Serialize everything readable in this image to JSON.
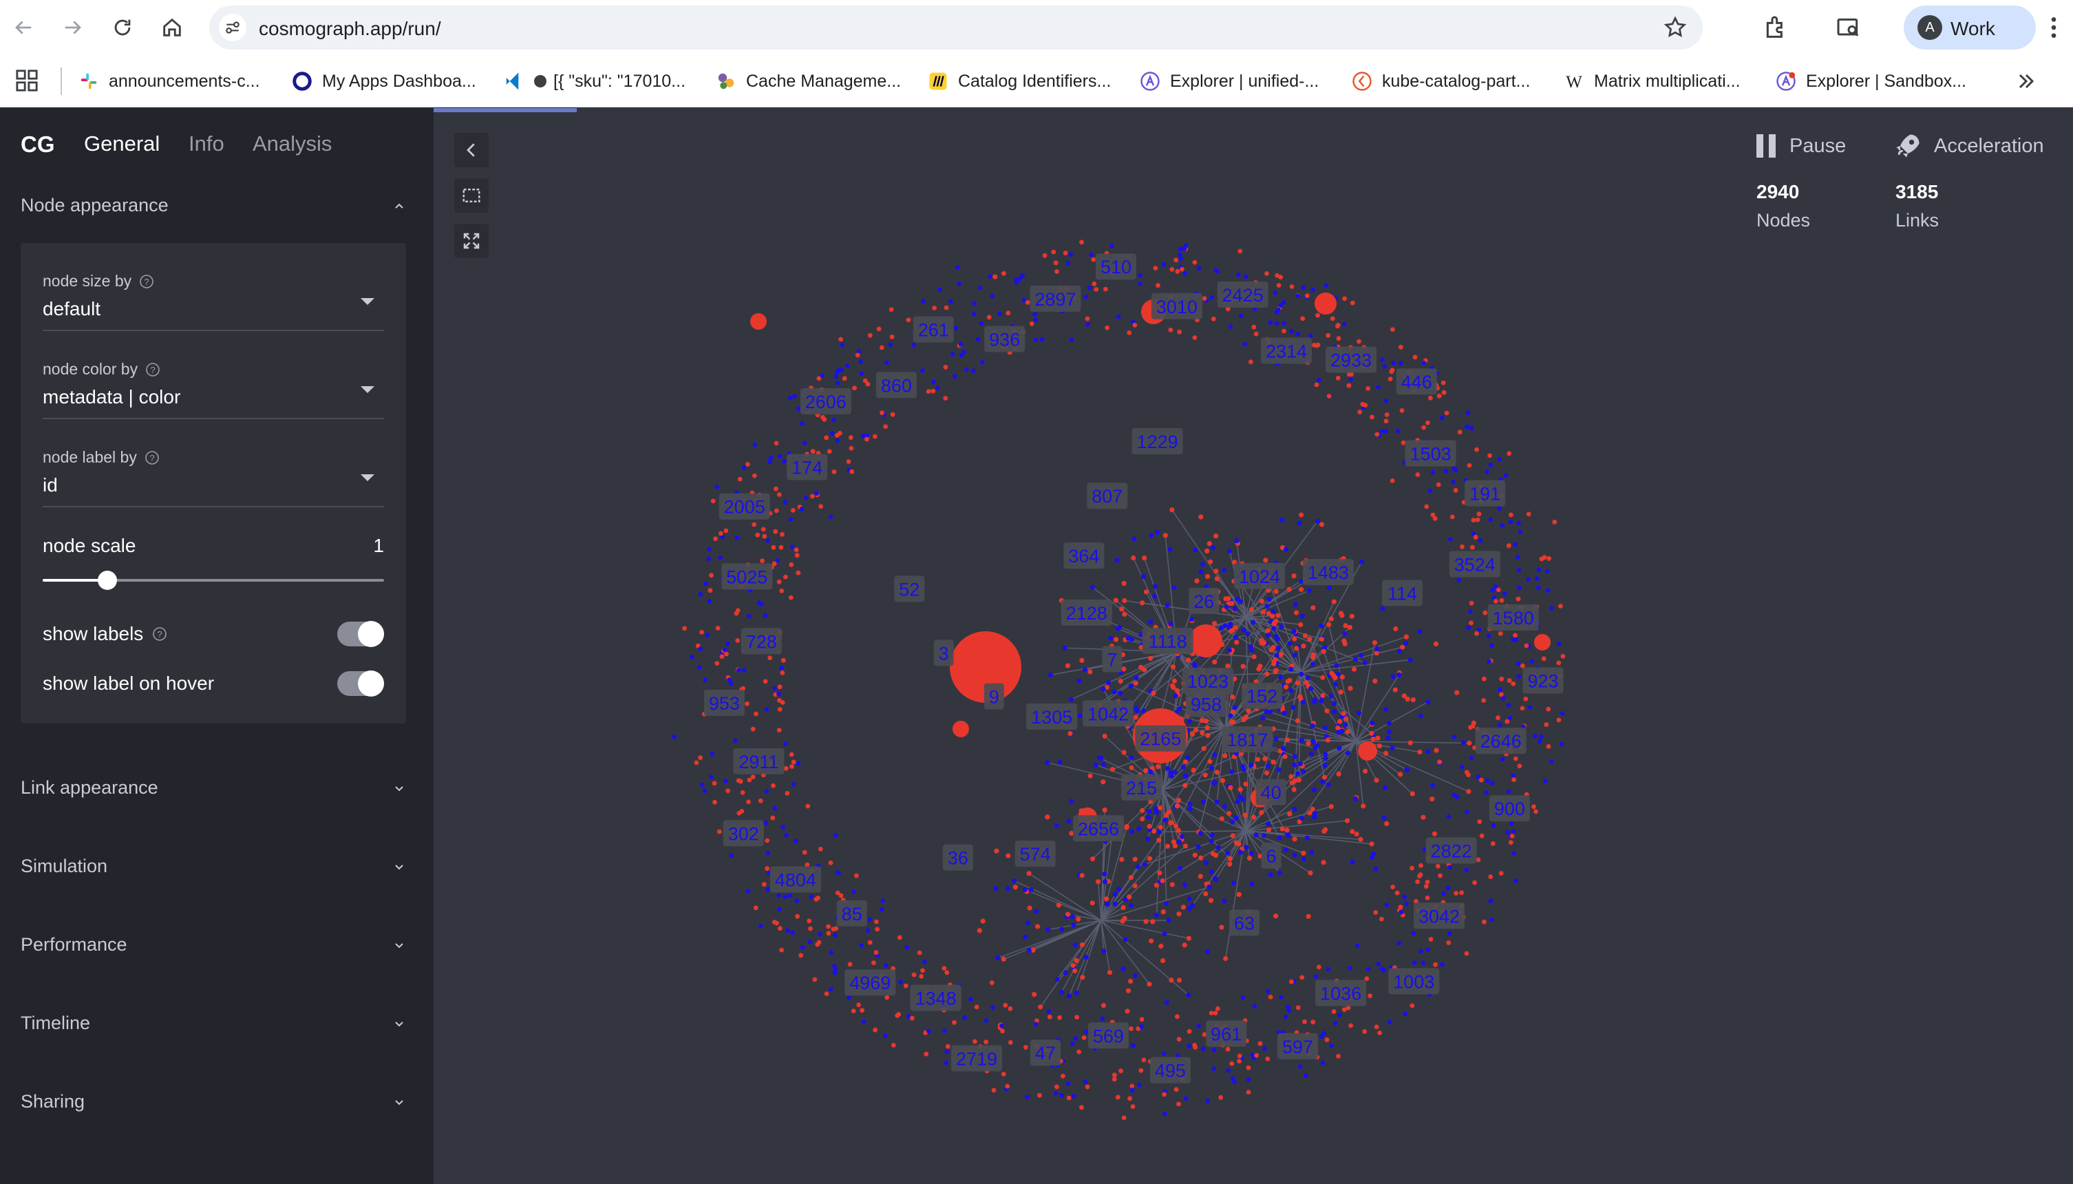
{
  "browser": {
    "url": "cosmograph.app/run/",
    "profile_initial": "A",
    "profile_name": "Work",
    "bookmarks": [
      {
        "label": "announcements-c...",
        "icon": "slack-icon"
      },
      {
        "label": "My Apps Dashboa...",
        "icon": "okta-icon"
      },
      {
        "label": "[{ \"sku\": \"17010...",
        "icon": "vscode-icon"
      },
      {
        "label": "Cache Manageme...",
        "icon": "cache-icon"
      },
      {
        "label": "Catalog Identifiers...",
        "icon": "miro-icon"
      },
      {
        "label": "Explorer | unified-...",
        "icon": "explorer-icon"
      },
      {
        "label": "kube-catalog-part...",
        "icon": "catalog-icon"
      },
      {
        "label": "Matrix multiplicati...",
        "icon": "wikipedia-icon"
      },
      {
        "label": "Explorer | Sandbox...",
        "icon": "explorer-icon"
      }
    ]
  },
  "sidebar": {
    "brand": "CG",
    "tabs": [
      {
        "label": "General",
        "active": true
      },
      {
        "label": "Info",
        "active": false
      },
      {
        "label": "Analysis",
        "active": false
      }
    ],
    "node_appearance": {
      "title": "Node appearance",
      "fields": [
        {
          "label": "node size by",
          "value": "default"
        },
        {
          "label": "node color by",
          "value": "metadata | color"
        },
        {
          "label": "node label by",
          "value": "id"
        }
      ],
      "scale_label": "node scale",
      "scale_value": "1",
      "scale_fraction": 0.19,
      "toggles": [
        {
          "label": "show labels",
          "on": true,
          "help": true
        },
        {
          "label": "show label on hover",
          "on": true,
          "help": false
        }
      ]
    },
    "sections": [
      "Link appearance",
      "Simulation",
      "Performance",
      "Timeline",
      "Sharing"
    ]
  },
  "canvas": {
    "pause_label": "Pause",
    "acceleration_label": "Acceleration",
    "nodes_count": "2940",
    "nodes_label": "Nodes",
    "links_count": "3185",
    "links_label": "Links",
    "colors": {
      "background": "#34363f",
      "node_red": "#e8382d",
      "node_blue": "#1a10e6",
      "label_bg": "#4a4c54"
    },
    "hub_labels": [
      "958",
      "1817",
      "40",
      "6",
      "63",
      "2165",
      "215",
      "2656",
      "574",
      "36",
      "1042",
      "1305",
      "9",
      "3",
      "52",
      "7",
      "2128",
      "364",
      "807",
      "1229",
      "1118",
      "26",
      "1024",
      "1483",
      "114",
      "1023",
      "152"
    ],
    "ring_labels": [
      "936",
      "2897",
      "510",
      "3010",
      "2425",
      "2314",
      "2933",
      "446",
      "1503",
      "191",
      "3524",
      "1580",
      "923",
      "2646",
      "900",
      "2822",
      "3042",
      "1003",
      "1036",
      "597",
      "961",
      "495",
      "569",
      "47",
      "2719",
      "1348",
      "4969",
      "85",
      "4804",
      "302",
      "2911",
      "953",
      "728",
      "5025",
      "2005",
      "174",
      "2606",
      "860",
      "261"
    ]
  }
}
